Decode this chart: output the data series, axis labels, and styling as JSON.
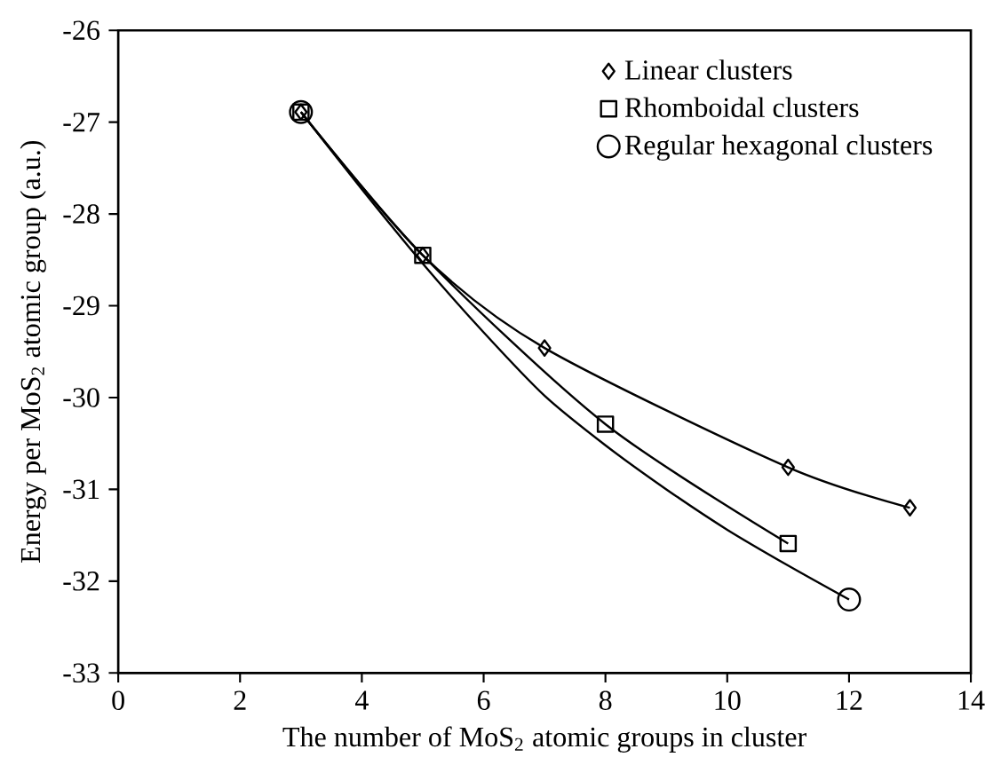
{
  "chart_data": {
    "type": "line",
    "xlabel": "The number of MoS$_{2}$ atomic groups in cluster",
    "ylabel": "Energy per MoS$_{2}$ atomic group (a.u.)",
    "xlim": [
      0,
      14
    ],
    "ylim": [
      -33,
      -26
    ],
    "xticks": [
      0,
      2,
      4,
      6,
      8,
      10,
      12,
      14
    ],
    "yticks": [
      -33,
      -32,
      -31,
      -30,
      -29,
      -28,
      -27,
      -26
    ],
    "legend": "top right",
    "grid": false,
    "series": [
      {
        "name": "Linear clusters",
        "color": "#000000",
        "marker": "diamond",
        "x": [
          3,
          5,
          7,
          11,
          13
        ],
        "values": [
          -26.89,
          -28.45,
          -29.46,
          -30.76,
          -31.2
        ]
      },
      {
        "name": "Rhomboidal clusters",
        "color": "#000000",
        "marker": "square",
        "x": [
          3,
          5,
          8,
          11
        ],
        "values": [
          -26.89,
          -28.45,
          -30.29,
          -31.59
        ]
      },
      {
        "name": "Regular hexagonal clusters",
        "type": "scatter",
        "color": "#000000",
        "marker": "circle",
        "x": [
          3,
          12
        ],
        "values": [
          -26.89,
          -32.2
        ]
      },
      {
        "type": "line",
        "color": "#000000",
        "marker": "none",
        "x": [
          3,
          4,
          5,
          6,
          7,
          8,
          9,
          10,
          11,
          12
        ],
        "values": [
          -26.89,
          -27.73,
          -28.54,
          -29.29,
          -29.98,
          -30.52,
          -31.0,
          -31.44,
          -31.83,
          -32.2
        ]
      }
    ]
  }
}
